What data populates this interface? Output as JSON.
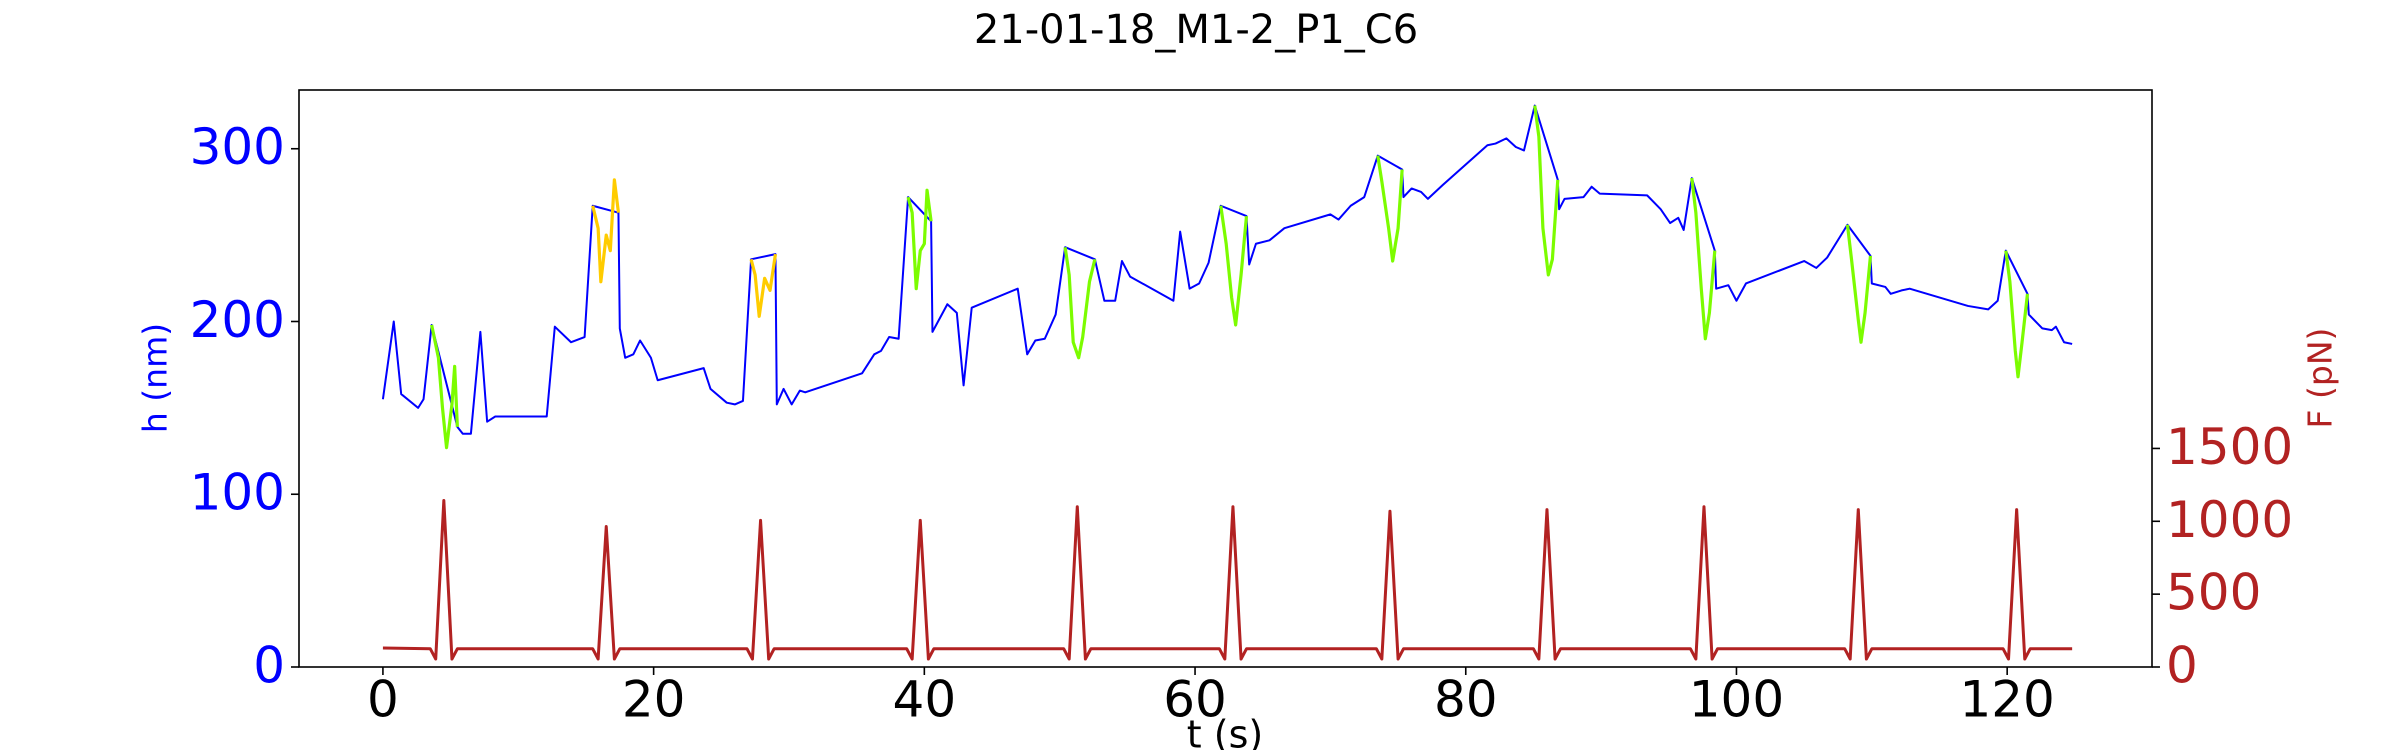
{
  "chart_data": {
    "type": "line",
    "title": "21-01-18_M1-2_P1_C6",
    "xlabel": "t (s)",
    "ylabel": "h (nm)",
    "y2label": "F (pN)",
    "ycolor": "#0000ff",
    "y2color": "#b22222",
    "xlim": [
      -6.2,
      130.7
    ],
    "xticks": [
      0,
      20,
      40,
      60,
      80,
      100,
      120
    ],
    "ylim": [
      0,
      334
    ],
    "yticks": [
      0,
      100,
      200,
      300
    ],
    "y2lim": [
      0,
      3960
    ],
    "y2ticks": [
      0,
      500,
      1000,
      1500
    ],
    "series": [
      {
        "color": "#0000ff",
        "x": [
          0,
          0.8,
          1.35,
          2.6,
          3.0,
          3.6,
          5.5,
          5.9,
          6.5,
          7.2,
          7.7,
          8.3,
          12.1,
          12.7,
          13.9,
          14.9,
          15.5,
          17.4,
          17.5,
          17.9,
          18.5,
          19.0,
          19.8,
          20.3,
          23.7,
          24.2,
          25.4,
          26.0,
          26.6,
          27.2,
          29.0,
          29.1,
          29.6,
          30.2,
          30.8,
          31.2,
          35.4,
          36.3,
          36.8,
          37.4,
          38.1,
          38.8,
          40.5,
          40.6,
          41.7,
          42.4,
          42.9,
          43.5,
          46.9,
          47.6,
          48.2,
          48.9,
          49.7,
          50.4,
          52.6,
          53.3,
          54.1,
          54.6,
          55.2,
          58.4,
          58.9,
          59.6,
          60.3,
          61.0,
          61.9,
          63.8,
          64.0,
          64.5,
          65.5,
          66.6,
          70.0,
          70.6,
          71.5,
          72.5,
          73.5,
          75.3,
          75.4,
          76.0,
          76.7,
          77.2,
          78.3,
          81.6,
          82.2,
          83.0,
          83.7,
          84.3,
          85.1,
          86.8,
          86.9,
          87.3,
          88.7,
          89.3,
          89.9,
          93.4,
          94.4,
          95.1,
          95.7,
          96.1,
          96.7,
          98.4,
          98.5,
          99.4,
          100.0,
          100.7,
          105.0,
          105.9,
          106.7,
          108.2,
          109.9,
          110.0,
          111.0,
          111.4,
          112.2,
          112.8,
          117.1,
          118.6,
          119.3,
          119.9,
          121.5,
          121.6,
          122.6,
          123.3,
          123.6,
          124.2,
          124.8
        ],
        "values": [
          155,
          200,
          158,
          150,
          155,
          198,
          139,
          135,
          135,
          194,
          142,
          145,
          145,
          197,
          188,
          191,
          267,
          263,
          196,
          179,
          181,
          189,
          179,
          166,
          173,
          161,
          153,
          152,
          154,
          236,
          239,
          152,
          161,
          152,
          160,
          159,
          170,
          181,
          183,
          191,
          190,
          272,
          258,
          194,
          210,
          205,
          163,
          208,
          219,
          181,
          189,
          190,
          204,
          243,
          236,
          212,
          212,
          235,
          226,
          212,
          252,
          219,
          222,
          234,
          267,
          261,
          233,
          245,
          247,
          254,
          262,
          259,
          267,
          272,
          296,
          288,
          272,
          277,
          275,
          271,
          279,
          302,
          303,
          306,
          301,
          299,
          325,
          282,
          265,
          271,
          272,
          278,
          274,
          273,
          265,
          257,
          260,
          253,
          283,
          241,
          219,
          221,
          212,
          222,
          235,
          231,
          237,
          256,
          238,
          222,
          220,
          216,
          218,
          219,
          209,
          207,
          212,
          241,
          216,
          204,
          196,
          195,
          197,
          188,
          187
        ]
      },
      {
        "color": "#7cfc00",
        "x": [
          3.6,
          4.1,
          4.4,
          4.7,
          5.1,
          5.3,
          5.5
        ],
        "values": [
          198,
          179,
          150,
          127,
          152,
          174,
          139
        ]
      },
      {
        "color": "#ffcc00",
        "x": [
          15.5,
          15.9,
          16.1,
          16.5,
          16.8,
          17.1,
          17.4
        ],
        "values": [
          267,
          254,
          223,
          250,
          241,
          282,
          263
        ]
      },
      {
        "color": "#ffcc00",
        "x": [
          27.2,
          27.5,
          27.8,
          28.2,
          28.6,
          29.0
        ],
        "values": [
          236,
          227,
          203,
          225,
          218,
          239
        ]
      },
      {
        "color": "#7cfc00",
        "x": [
          38.8,
          39.1,
          39.4,
          39.7,
          40.0,
          40.2,
          40.5
        ],
        "values": [
          272,
          263,
          219,
          241,
          245,
          276,
          258
        ]
      },
      {
        "color": "#7cfc00",
        "x": [
          50.4,
          50.7,
          51.0,
          51.4,
          51.7,
          52.2,
          52.6
        ],
        "values": [
          243,
          227,
          188,
          179,
          191,
          223,
          236
        ]
      },
      {
        "color": "#7cfc00",
        "x": [
          61.9,
          62.3,
          62.7,
          63.0,
          63.4,
          63.8
        ],
        "values": [
          267,
          245,
          214,
          198,
          227,
          261
        ]
      },
      {
        "color": "#7cfc00",
        "x": [
          73.5,
          73.8,
          74.3,
          74.6,
          75.0,
          75.3
        ],
        "values": [
          296,
          281,
          254,
          235,
          254,
          288
        ]
      },
      {
        "color": "#7cfc00",
        "x": [
          85.1,
          85.4,
          85.7,
          86.1,
          86.4,
          86.8
        ],
        "values": [
          325,
          307,
          254,
          227,
          236,
          282
        ]
      },
      {
        "color": "#7cfc00",
        "x": [
          96.7,
          97.0,
          97.4,
          97.7,
          98.0,
          98.4
        ],
        "values": [
          283,
          263,
          219,
          190,
          205,
          241
        ]
      },
      {
        "color": "#7cfc00",
        "x": [
          108.2,
          108.5,
          109.0,
          109.2,
          109.5,
          109.9
        ],
        "values": [
          256,
          236,
          201,
          188,
          205,
          238
        ]
      },
      {
        "color": "#7cfc00",
        "x": [
          119.9,
          120.2,
          120.6,
          120.8,
          121.1,
          121.5
        ],
        "values": [
          241,
          223,
          183,
          168,
          188,
          216
        ]
      },
      {
        "color": "#b22222",
        "axis": "y2",
        "x": [
          0,
          3.5,
          3.9,
          4.5,
          5.1,
          5.5,
          15.5,
          15.9,
          16.5,
          17.1,
          17.5,
          26.9,
          27.3,
          27.9,
          28.5,
          28.9,
          38.7,
          39.1,
          39.7,
          40.3,
          40.7,
          50.3,
          50.7,
          51.3,
          51.9,
          52.3,
          61.8,
          62.2,
          62.8,
          63.4,
          63.8,
          73.4,
          73.8,
          74.4,
          75.0,
          75.4,
          85.0,
          85.4,
          86.0,
          86.6,
          87.0,
          96.6,
          97.0,
          97.6,
          98.2,
          98.6,
          108.0,
          108.4,
          109.0,
          109.6,
          110.0,
          119.7,
          120.1,
          120.7,
          121.3,
          121.7,
          124.8
        ],
        "values": [
          130,
          125,
          55,
          1143,
          55,
          125,
          125,
          55,
          964,
          55,
          125,
          125,
          55,
          1006,
          55,
          125,
          125,
          55,
          1006,
          55,
          125,
          125,
          55,
          1100,
          55,
          125,
          125,
          55,
          1100,
          55,
          125,
          125,
          55,
          1069,
          55,
          125,
          125,
          55,
          1080,
          55,
          125,
          125,
          55,
          1100,
          55,
          125,
          125,
          55,
          1080,
          55,
          125,
          125,
          55,
          1080,
          55,
          125,
          125
        ]
      }
    ]
  }
}
